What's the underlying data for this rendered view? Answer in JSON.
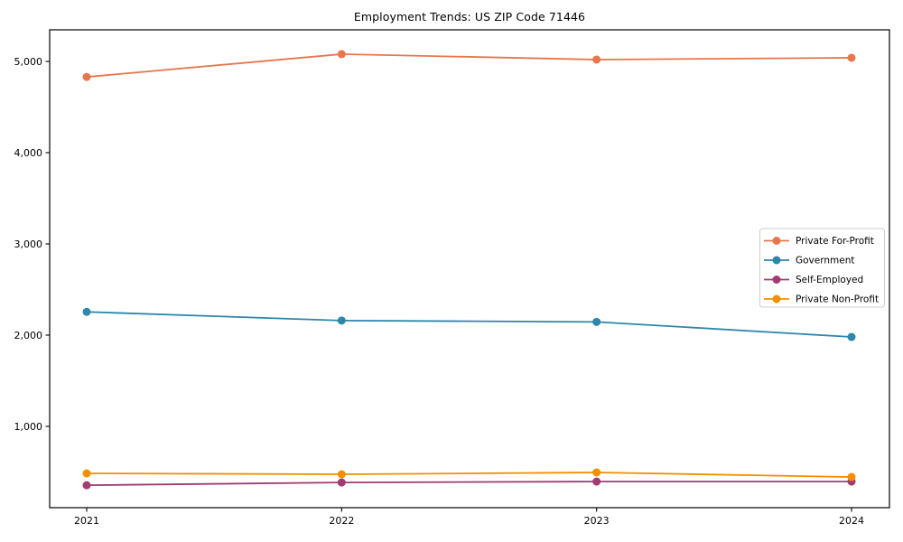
{
  "figure": {
    "background": "#ffffff",
    "frame_color": "#000000",
    "text_color": "#000000",
    "legend_border_color": "#cccccc",
    "legend_background": "#ffffff"
  },
  "chart_data": {
    "type": "line",
    "title": "Employment Trends: US ZIP Code 71446",
    "xlabel": "",
    "ylabel": "",
    "categories": [
      "2021",
      "2022",
      "2023",
      "2024"
    ],
    "series": [
      {
        "name": "Private For-Profit",
        "color": "#E8764B",
        "values": [
          4830,
          5080,
          5020,
          5040
        ]
      },
      {
        "name": "Government",
        "color": "#2E86AB",
        "values": [
          2255,
          2160,
          2145,
          1980
        ]
      },
      {
        "name": "Self-Employed",
        "color": "#A23B72",
        "values": [
          355,
          385,
          395,
          395
        ]
      },
      {
        "name": "Private Non-Profit",
        "color": "#F18F01",
        "values": [
          485,
          475,
          495,
          445
        ]
      }
    ],
    "yticks": [
      1000,
      2000,
      3000,
      4000,
      5000
    ],
    "ytick_labels": [
      "1,000",
      "2,000",
      "3,000",
      "4,000",
      "5,000"
    ],
    "ylim": [
      109,
      5346
    ],
    "grid": false,
    "marker": "circle",
    "legend_position": "center-right",
    "legend_entries": [
      "Private For-Profit",
      "Government",
      "Self-Employed",
      "Private Non-Profit"
    ]
  }
}
